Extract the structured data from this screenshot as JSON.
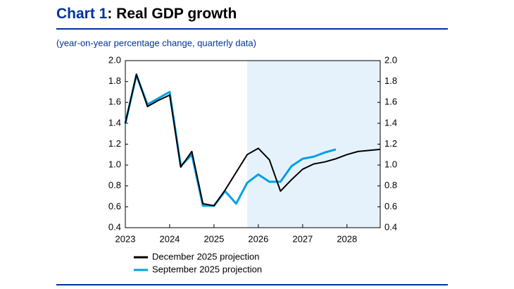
{
  "chart_data": {
    "type": "line",
    "chart_number": "Chart 1",
    "title": ": Real GDP growth",
    "subtitle": "(year-on-year percentage change, quarterly data)",
    "x": [
      2023,
      2023.25,
      2023.5,
      2023.75,
      2024,
      2024.25,
      2024.5,
      2024.75,
      2025,
      2025.25,
      2025.5,
      2025.75,
      2026,
      2026.25,
      2026.5,
      2026.75,
      2027,
      2027.25,
      2027.5,
      2027.75,
      2028,
      2028.25,
      2028.5,
      2028.75
    ],
    "series": [
      {
        "name": "December 2025 projection",
        "color": "#000000",
        "values": [
          1.4,
          1.87,
          1.56,
          1.62,
          1.67,
          0.98,
          1.13,
          0.63,
          0.61,
          0.76,
          0.93,
          1.1,
          1.16,
          1.05,
          0.75,
          0.86,
          0.96,
          1.01,
          1.03,
          1.06,
          1.1,
          1.13,
          1.14,
          1.15
        ]
      },
      {
        "name": "September 2025 projection",
        "color": "#00a0e3",
        "values": [
          1.4,
          1.86,
          1.58,
          1.64,
          1.7,
          0.99,
          1.1,
          0.61,
          0.61,
          0.75,
          0.63,
          0.83,
          0.91,
          0.84,
          0.84,
          0.99,
          1.06,
          1.08,
          1.12,
          1.15,
          null,
          null,
          null,
          null
        ]
      }
    ],
    "projection_start": 2025.75,
    "projection_color": "#e6f2fb",
    "xlim": [
      2023,
      2028.75
    ],
    "xticks": [
      2023,
      2024,
      2025,
      2026,
      2027,
      2028
    ],
    "ylim": [
      0.4,
      2.0
    ],
    "yticks": [
      {
        "value": 0.4,
        "label": "0.4"
      },
      {
        "value": 0.6,
        "label": "0.6"
      },
      {
        "value": 0.8,
        "label": "0.8"
      },
      {
        "value": 1.0,
        "label": "1.0"
      },
      {
        "value": 1.2,
        "label": "1.2"
      },
      {
        "value": 1.4,
        "label": "1.4"
      },
      {
        "value": 1.6,
        "label": "1.6"
      },
      {
        "value": 1.8,
        "label": "1.8"
      },
      {
        "value": 2.0,
        "label": "2.0"
      }
    ],
    "y2lim": [
      0.4,
      2.0
    ],
    "y2ticks": [
      {
        "value": 0.4,
        "label": "0.4"
      },
      {
        "value": 0.6,
        "label": "0.6"
      },
      {
        "value": 0.8,
        "label": "0.8"
      },
      {
        "value": 1.0,
        "label": "1.0"
      },
      {
        "value": 1.2,
        "label": "1.2"
      },
      {
        "value": 1.4,
        "label": "1.4"
      },
      {
        "value": 1.6,
        "label": "1.6"
      },
      {
        "value": 1.8,
        "label": "1.8"
      },
      {
        "value": 2.0,
        "label": "2.0"
      }
    ]
  }
}
